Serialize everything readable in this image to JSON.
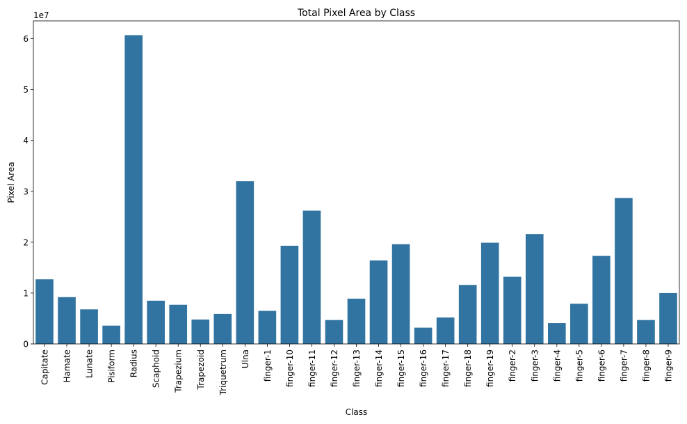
{
  "chart_data": {
    "type": "bar",
    "title": "Total Pixel Area by Class",
    "xlabel": "Class",
    "ylabel": "Pixel Area",
    "y_offset_label": "1e7",
    "ylim": [
      0,
      63500000
    ],
    "y_ticks": [
      0,
      10000000,
      20000000,
      30000000,
      40000000,
      50000000,
      60000000
    ],
    "y_tick_labels": [
      "0",
      "1",
      "2",
      "3",
      "4",
      "5",
      "6"
    ],
    "grid": false,
    "bar_color": "#3274a1",
    "categories": [
      "Capitate",
      "Hamate",
      "Lunate",
      "Pisiform",
      "Radius",
      "Scaphoid",
      "Trapezium",
      "Trapezoid",
      "Triquetrum",
      "Ulna",
      "finger-1",
      "finger-10",
      "finger-11",
      "finger-12",
      "finger-13",
      "finger-14",
      "finger-15",
      "finger-16",
      "finger-17",
      "finger-18",
      "finger-19",
      "finger-2",
      "finger-3",
      "finger-4",
      "finger-5",
      "finger-6",
      "finger-7",
      "finger-8",
      "finger-9"
    ],
    "values": [
      12700000,
      9200000,
      6800000,
      3600000,
      60700000,
      8500000,
      7700000,
      4800000,
      5900000,
      32000000,
      6500000,
      19300000,
      26200000,
      4700000,
      8900000,
      16400000,
      19600000,
      3200000,
      5200000,
      11600000,
      19900000,
      13200000,
      21600000,
      4100000,
      7900000,
      17300000,
      28700000,
      4700000,
      10000000
    ]
  }
}
